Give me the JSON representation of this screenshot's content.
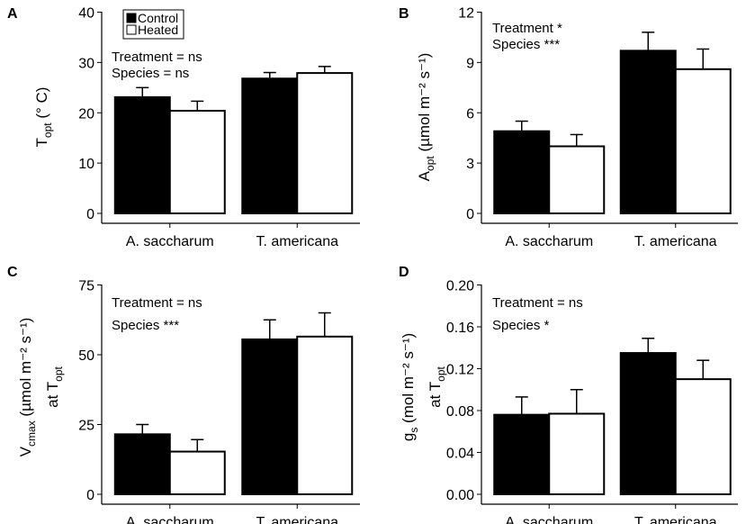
{
  "legend": {
    "entries": [
      {
        "name": "Control",
        "color": "#000000"
      },
      {
        "name": "Heated",
        "color": "#ffffff"
      }
    ]
  },
  "chart_data": [
    {
      "panel": "A",
      "type": "bar",
      "categories": [
        "A. saccharum",
        "T. americana"
      ],
      "series": [
        {
          "name": "Control",
          "values": [
            23.1,
            26.8
          ],
          "errors": [
            1.9,
            1.2
          ]
        },
        {
          "name": "Heated",
          "values": [
            20.4,
            27.9
          ],
          "errors": [
            1.9,
            1.3
          ]
        }
      ],
      "ylim": [
        0,
        40
      ],
      "yticks": [
        0,
        10,
        20,
        30,
        40
      ],
      "ylabel": {
        "main": "T",
        "sub": "opt",
        "rest": " (° C)"
      },
      "annotations": [
        "Treatment  = ns",
        "Species = ns"
      ]
    },
    {
      "panel": "B",
      "type": "bar",
      "categories": [
        "A. saccharum",
        "T. americana"
      ],
      "series": [
        {
          "name": "Control",
          "values": [
            4.9,
            9.7
          ],
          "errors": [
            0.6,
            1.1
          ]
        },
        {
          "name": "Heated",
          "values": [
            4.0,
            8.6
          ],
          "errors": [
            0.7,
            1.2
          ]
        }
      ],
      "ylim": [
        0,
        12
      ],
      "yticks": [
        0,
        3,
        6,
        9,
        12
      ],
      "ylabel": {
        "main": "A",
        "sub": "opt",
        "rest": " (µmol m⁻² s⁻¹)"
      },
      "annotations": [
        "Treatment *",
        "Species ***"
      ]
    },
    {
      "panel": "C",
      "type": "bar",
      "categories": [
        "A. saccharum",
        "T. americana"
      ],
      "series": [
        {
          "name": "Control",
          "values": [
            21.5,
            55.5
          ],
          "errors": [
            3.5,
            7.0
          ]
        },
        {
          "name": "Heated",
          "values": [
            15.3,
            56.5
          ],
          "errors": [
            4.3,
            8.5
          ]
        }
      ],
      "ylim": [
        0,
        75
      ],
      "yticks": [
        0,
        25,
        50,
        75
      ],
      "ylabel": {
        "main": "V",
        "sub": "cmax",
        "rest": " (µmol m⁻² s⁻¹)",
        "line2": "at T",
        "line2_sub": "opt"
      },
      "annotations": [
        "Treatment = ns",
        "Species ***"
      ]
    },
    {
      "panel": "D",
      "type": "bar",
      "categories": [
        "A. saccharum",
        "T. americana"
      ],
      "series": [
        {
          "name": "Control",
          "values": [
            0.076,
            0.135
          ],
          "errors": [
            0.017,
            0.014
          ]
        },
        {
          "name": "Heated",
          "values": [
            0.077,
            0.11
          ],
          "errors": [
            0.023,
            0.018
          ]
        }
      ],
      "ylim": [
        0,
        0.2
      ],
      "yticks": [
        "0.00",
        "0.04",
        "0.08",
        "0.12",
        "0.16",
        "0.20"
      ],
      "ylabel": {
        "main": "g",
        "sub": "s",
        "rest": " (mol m⁻² s⁻¹)",
        "line2": "at T",
        "line2_sub": "opt"
      },
      "annotations": [
        "Treatment  = ns",
        "Species *"
      ]
    }
  ]
}
